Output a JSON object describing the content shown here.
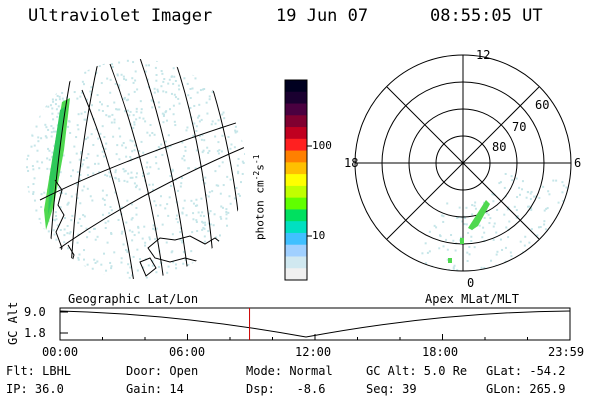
{
  "header": {
    "instrument": "Ultraviolet Imager",
    "date": "19 Jun 07",
    "time": "08:55:05 UT"
  },
  "colorbar": {
    "unit_label": "photon cm",
    "unit_exp1": "-2",
    "unit_mid": "s",
    "unit_exp2": "-1",
    "ticks": [
      "100",
      "10"
    ],
    "colors": [
      "#000020",
      "#1a0030",
      "#4a0040",
      "#800030",
      "#c00020",
      "#ff2020",
      "#ff8000",
      "#ffc000",
      "#ffff00",
      "#c0ff00",
      "#60ff00",
      "#00e060",
      "#00e0c0",
      "#40c0ff",
      "#a0d0ff",
      "#d0e8f0",
      "#f0f0f0"
    ]
  },
  "polar_plot": {
    "mlt_labels": {
      "top": "12",
      "left": "18",
      "right": "6",
      "bottom": "0"
    },
    "lat_labels": [
      "60",
      "70",
      "80"
    ]
  },
  "labels": {
    "geo_grid": "Geographic Lat/Lon",
    "apex_grid": "Apex MLat/MLT"
  },
  "altitude_plot": {
    "y_title": "GC Alt",
    "y_ticks": [
      "9.0",
      "1.8"
    ],
    "x_ticks": [
      "00:00",
      "06:00",
      "12:00",
      "18:00",
      "23:59"
    ],
    "current_time_marker_hours": 8.92,
    "line_color": "#cc0000"
  },
  "info": {
    "row1": {
      "flt": "Flt: LBHL",
      "door": "Door: Open",
      "mode": "Mode: Normal",
      "gcalt": "GC Alt: 5.0 Re",
      "glat": "GLat: -54.2"
    },
    "row2": {
      "ip": "IP: 36.0",
      "gain": "Gain: 14",
      "dsp": "Dsp:   -8.6",
      "seq": "Seq: 39",
      "glon": "GLon: 265.9"
    }
  }
}
